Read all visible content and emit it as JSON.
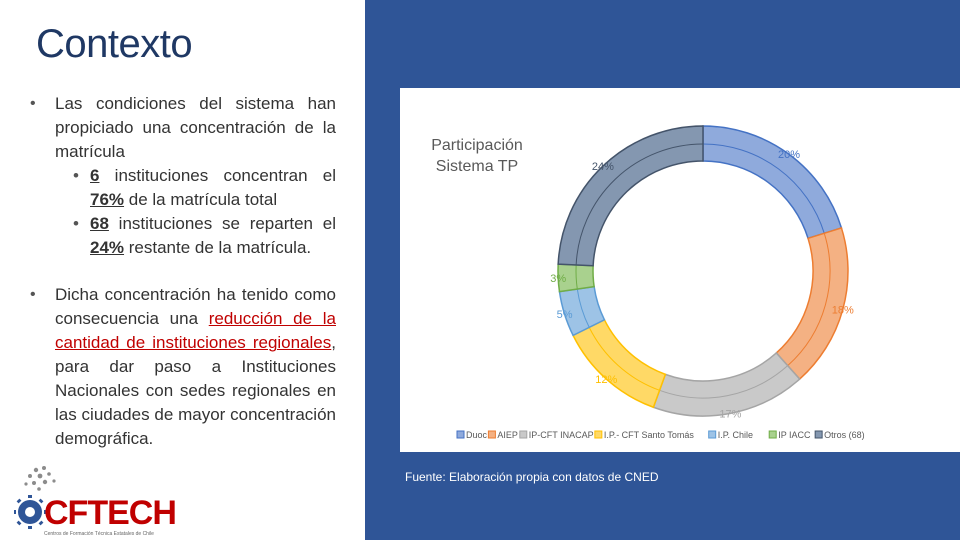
{
  "slide": {
    "title": "Contexto",
    "bullet1": {
      "text": "Las condiciones del sistema han propiciado una concentración de la matrícula",
      "sub1_num": "6",
      "sub1_text": " instituciones concentran el ",
      "sub1_pct": "76%",
      "sub1_end": " de la matrícula total",
      "sub2_num": "68",
      "sub2_text": " instituciones se reparten el ",
      "sub2_pct": "24%",
      "sub2_end": " restante de la matrícula."
    },
    "bullet2": {
      "pre": "Dicha concentración ha tenido como consecuencia una ",
      "highlight": "reducción de la cantidad de instituciones regionales",
      "post": ", para dar paso a Instituciones Nacionales con sedes regionales en las ciudades de mayor concentración demográfica."
    },
    "source": "Fuente: Elaboración propia con datos de CNED",
    "logo_text": "CFTECH",
    "logo_sub": "Centros de Formación Técnica Estatales de Chile"
  },
  "chart_data": {
    "type": "pie",
    "subtype": "doughnut",
    "title": "Participación Sistema TP",
    "categories": [
      "Duoc",
      "AIEP",
      "IP-CFT INACAP",
      "I.P.- CFT Santo Tomás",
      "I.P. Chile",
      "IP IACC",
      "Otros (68)"
    ],
    "values": [
      20,
      18,
      17,
      12,
      5,
      3,
      24
    ],
    "labels": [
      "20%",
      "18%",
      "17%",
      "12%",
      "5%",
      "3%",
      "24%"
    ],
    "colors": [
      "#8faadc",
      "#f4b183",
      "#c9c9c9",
      "#ffd966",
      "#9dc3e6",
      "#a9d18e",
      "#8497b0"
    ],
    "strokes": [
      "#4472c4",
      "#ed7d31",
      "#a5a5a5",
      "#ffc000",
      "#5b9bd5",
      "#70ad47",
      "#44546a"
    ],
    "legend_position": "bottom"
  }
}
